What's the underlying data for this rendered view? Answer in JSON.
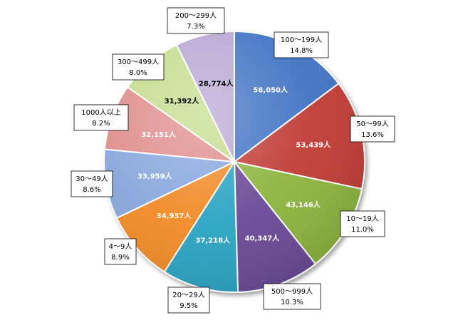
{
  "chart_data": {
    "type": "pie",
    "title": "",
    "start_angle_deg": 0,
    "direction": "clockwise",
    "slices": [
      {
        "label": "100〜199人",
        "value": 58050,
        "value_label": "58,050人",
        "percent_label": "14.8%",
        "color": "#3f72c3",
        "value_text_color": "#ffffff"
      },
      {
        "label": "50〜99人",
        "value": 53439,
        "value_label": "53,439人",
        "percent_label": "13.6%",
        "color": "#c03a36",
        "value_text_color": "#ffffff"
      },
      {
        "label": "10〜19人",
        "value": 43146,
        "value_label": "43,146人",
        "percent_label": "11.0%",
        "color": "#8cb43c",
        "value_text_color": "#ffffff"
      },
      {
        "label": "500〜999人",
        "value": 40347,
        "value_label": "40,347人",
        "percent_label": "10.3%",
        "color": "#6a4a96",
        "value_text_color": "#ffffff"
      },
      {
        "label": "20〜29人",
        "value": 37218,
        "value_label": "37,218人",
        "percent_label": "9.5%",
        "color": "#2aa4c2",
        "value_text_color": "#ffffff"
      },
      {
        "label": "4〜9人",
        "value": 34937,
        "value_label": "34,937人",
        "percent_label": "8.9%",
        "color": "#f08a25",
        "value_text_color": "#ffffff"
      },
      {
        "label": "30〜49人",
        "value": 33959,
        "value_label": "33,959人",
        "percent_label": "8.6%",
        "color": "#87a6dc",
        "value_text_color": "#ffffff"
      },
      {
        "label": "1000人以上",
        "value": 32151,
        "value_label": "32,151人",
        "percent_label": "8.2%",
        "color": "#de8c8a",
        "value_text_color": "#ffffff"
      },
      {
        "label": "300〜499人",
        "value": 31392,
        "value_label": "31,392人",
        "percent_label": "8.0%",
        "color": "#c4dc8c",
        "value_text_color": "#000000"
      },
      {
        "label": "200〜299人",
        "value": 28774,
        "value_label": "28,774人",
        "percent_label": "7.3%",
        "color": "#b7a6d3",
        "value_text_color": "#000000"
      }
    ]
  }
}
